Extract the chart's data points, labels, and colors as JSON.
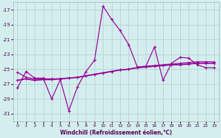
{
  "xlabel": "Windchill (Refroidissement éolien,°C)",
  "bg_color": "#d4eeee",
  "grid_color": "#aacccc",
  "line_color": "#990099",
  "xlim": [
    -0.5,
    23.5
  ],
  "ylim": [
    -32,
    -16
  ],
  "yticks": [
    -31,
    -29,
    -27,
    -25,
    -23,
    -21,
    -19,
    -17
  ],
  "xticks": [
    0,
    1,
    2,
    3,
    4,
    5,
    6,
    7,
    8,
    9,
    10,
    11,
    12,
    13,
    14,
    15,
    16,
    17,
    18,
    19,
    20,
    21,
    22,
    23
  ],
  "hours": [
    0,
    1,
    2,
    3,
    4,
    5,
    6,
    7,
    8,
    9,
    10,
    11,
    12,
    13,
    14,
    15,
    16,
    17,
    18,
    19,
    20,
    21,
    22,
    23
  ],
  "windchill": [
    -27.5,
    -25.3,
    -26.2,
    -26.2,
    -29.0,
    -26.4,
    -30.6,
    -27.4,
    -25.3,
    -23.8,
    -16.5,
    -18.3,
    -19.8,
    -21.7,
    -24.7,
    -24.6,
    -22.0,
    -26.5,
    -24.2,
    -23.4,
    -23.5,
    -24.4,
    -24.8,
    -24.8
  ],
  "line2": [
    -25.4,
    -26.1,
    -26.3,
    -26.3,
    -26.3,
    -26.3,
    -26.2,
    -26.1,
    -25.9,
    -25.7,
    -25.5,
    -25.3,
    -25.1,
    -25.0,
    -24.8,
    -24.6,
    -24.5,
    -24.4,
    -24.3,
    -24.2,
    -24.1,
    -24.0,
    -24.0,
    -24.0
  ],
  "line3": [
    -26.5,
    -26.3,
    -26.5,
    -26.4,
    -26.4,
    -26.3,
    -26.2,
    -26.1,
    -25.9,
    -25.7,
    -25.5,
    -25.3,
    -25.1,
    -25.0,
    -24.8,
    -24.7,
    -24.6,
    -24.5,
    -24.4,
    -24.4,
    -24.3,
    -24.2,
    -24.2,
    -24.2
  ]
}
